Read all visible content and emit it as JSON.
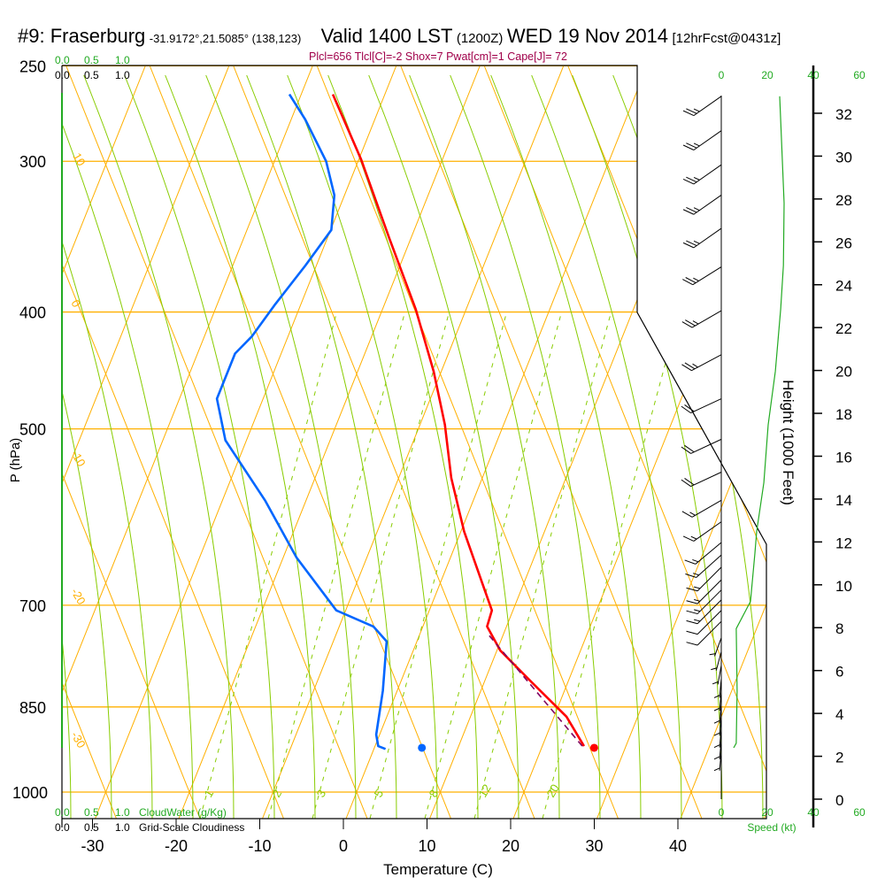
{
  "header": {
    "station": "#9: Fraserburg",
    "coords": "-31.9172°,21.5085° (138,123)",
    "valid": "Valid 1400 LST",
    "utc": "(1200Z)",
    "date": "WED 19 Nov 2014",
    "forecast": "[12hrFcst@0431z]"
  },
  "subtitle": "Plcl=656 Tlcl[C]=-2 Shox=7 Pwat[cm]=1 Cape[J]= 72",
  "colors": {
    "temperature": "#ff0000",
    "dewpoint": "#0066ff",
    "parcel": "#800060",
    "isotherm": "#ffb000",
    "moist_adiabat": "#88cc00",
    "mixing_ratio": "#88cc00",
    "speed": "#22aa22",
    "cloud_axis": "#22aa22"
  },
  "cloud_axes": {
    "cloudwater_ticks": [
      "0.0",
      "0.5",
      "1.0"
    ],
    "cloudwater_label": "CloudWater (g/Kg)",
    "cloudiness_ticks": [
      "0.0",
      "0.5",
      "1.0"
    ],
    "cloudiness_label": "Grid-Scale Cloudiness"
  },
  "speed_axis": {
    "ticks": [
      "0",
      "20",
      "40",
      "60"
    ],
    "label": "Speed (kt)"
  },
  "chart_data": {
    "type": "line",
    "title": "#9: Fraserburg Valid 1400 LST WED 19 Nov 2014",
    "xlabel": "Temperature (C)",
    "ylabel": "P (hPa)",
    "y2label": "Height (1000 Feet)",
    "xlim": [
      -35,
      50
    ],
    "ylim": [
      1000,
      250
    ],
    "x_ticks": [
      "-30",
      "-20",
      "-10",
      "0",
      "10",
      "20",
      "30",
      "40"
    ],
    "y_ticks": [
      "250",
      "300",
      "400",
      "500",
      "700",
      "850",
      "1000"
    ],
    "height_ticks": [
      "0",
      "2",
      "4",
      "6",
      "8",
      "10",
      "12",
      "14",
      "16",
      "18",
      "20",
      "22",
      "24",
      "26",
      "28",
      "30",
      "32"
    ],
    "adiabat_labels_left": [
      "10",
      "0",
      "-10",
      "-20",
      "-30"
    ],
    "adiabat_labels_right": [
      "0",
      "10",
      "20",
      "30"
    ],
    "mixing_ratio_labels": [
      "1",
      "2",
      "3",
      "5",
      "8",
      "12",
      "20"
    ],
    "series": [
      {
        "name": "Temperature",
        "p": [
          264,
          299,
          348,
          398,
          448,
          496,
          549,
          608,
          672,
          707,
          729,
          763,
          810,
          866,
          916
        ],
        "t": [
          -35.9,
          -29.4,
          -22.2,
          -15.7,
          -10.6,
          -6.7,
          -3.4,
          0.7,
          5.4,
          7.8,
          8.0,
          10.7,
          15.9,
          21.8,
          25.3
        ]
      },
      {
        "name": "Dewpoint",
        "p": [
          264,
          277,
          300,
          320,
          342,
          366,
          395,
          419,
          433,
          472,
          511,
          573,
          639,
          707,
          729,
          750,
          824,
          896,
          916,
          921
        ],
        "t": [
          -41.1,
          -38.0,
          -33.5,
          -30.9,
          -29.6,
          -31.0,
          -32.8,
          -34.0,
          -35.2,
          -35.2,
          -32.2,
          -24.6,
          -18.1,
          -10.8,
          -5.6,
          -3.3,
          -1.4,
          -0.1,
          0.7,
          1.7
        ]
      },
      {
        "name": "Parcel",
        "p": [
          742,
          916
        ],
        "t": [
          8.7,
          25.1
        ]
      }
    ],
    "surface_points": [
      {
        "name": "Surface dewpoint",
        "p": 919,
        "t": 6.0
      },
      {
        "name": "Surface temperature",
        "p": 919,
        "t": 26.6
      }
    ],
    "wind_speed": {
      "p": [
        265,
        325,
        366,
        398,
        448,
        496,
        554,
        608,
        634,
        695,
        732,
        824,
        911,
        919
      ],
      "kt": [
        25.4,
        27.3,
        27,
        25.8,
        23.5,
        20.4,
        18.5,
        15.4,
        14.6,
        12.7,
        6.5,
        6.9,
        6.5,
        5.4
      ]
    },
    "wind_barbs": [
      {
        "p": 265,
        "kt": 25,
        "dir": 235
      },
      {
        "p": 283,
        "kt": 25,
        "dir": 235
      },
      {
        "p": 302,
        "kt": 25,
        "dir": 235
      },
      {
        "p": 320,
        "kt": 25,
        "dir": 235
      },
      {
        "p": 341,
        "kt": 25,
        "dir": 235
      },
      {
        "p": 367,
        "kt": 25,
        "dir": 238
      },
      {
        "p": 399,
        "kt": 25,
        "dir": 240
      },
      {
        "p": 434,
        "kt": 25,
        "dir": 242
      },
      {
        "p": 472,
        "kt": 20,
        "dir": 245
      },
      {
        "p": 510,
        "kt": 20,
        "dir": 245
      },
      {
        "p": 543,
        "kt": 20,
        "dir": 245
      },
      {
        "p": 573,
        "kt": 15,
        "dir": 240
      },
      {
        "p": 597,
        "kt": 15,
        "dir": 235
      },
      {
        "p": 621,
        "kt": 15,
        "dir": 230
      },
      {
        "p": 636,
        "kt": 15,
        "dir": 228
      },
      {
        "p": 651,
        "kt": 15,
        "dir": 225
      },
      {
        "p": 667,
        "kt": 15,
        "dir": 225
      },
      {
        "p": 680,
        "kt": 15,
        "dir": 225
      },
      {
        "p": 693,
        "kt": 15,
        "dir": 225
      },
      {
        "p": 707,
        "kt": 10,
        "dir": 225
      },
      {
        "p": 722,
        "kt": 10,
        "dir": 225
      },
      {
        "p": 745,
        "kt": 5,
        "dir": 200
      },
      {
        "p": 765,
        "kt": 5,
        "dir": 195
      },
      {
        "p": 785,
        "kt": 5,
        "dir": 190
      },
      {
        "p": 805,
        "kt": 5,
        "dir": 185
      },
      {
        "p": 825,
        "kt": 5,
        "dir": 185
      },
      {
        "p": 845,
        "kt": 5,
        "dir": 185
      },
      {
        "p": 865,
        "kt": 5,
        "dir": 185
      },
      {
        "p": 885,
        "kt": 5,
        "dir": 185
      },
      {
        "p": 905,
        "kt": 5,
        "dir": 185
      },
      {
        "p": 925,
        "kt": 5,
        "dir": 185
      }
    ]
  }
}
